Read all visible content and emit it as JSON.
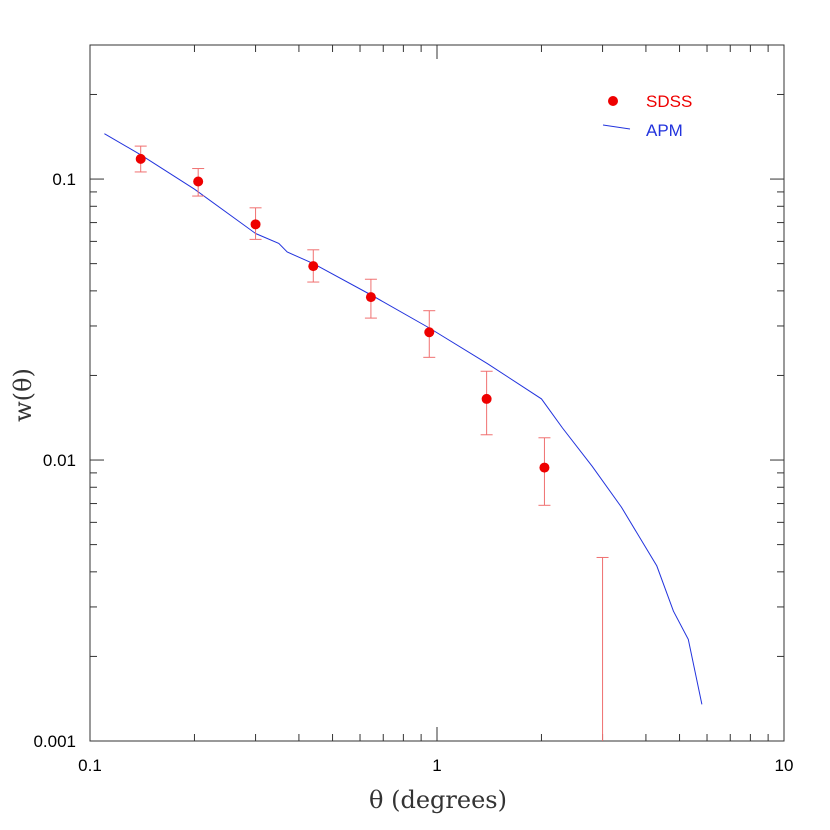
{
  "chart_data": {
    "type": "scatter",
    "xlabel": "θ (degrees)",
    "ylabel": "w(θ)",
    "x_scale": "log",
    "y_scale": "log",
    "xlim": [
      0.1,
      10
    ],
    "ylim": [
      0.001,
      0.3
    ],
    "grid": false,
    "legend_position": "top-right",
    "x_tick_labels": [
      "0.1",
      "1",
      "10"
    ],
    "y_tick_labels": [
      "0.001",
      "0.01",
      "0.1"
    ],
    "series": [
      {
        "name": "SDSS",
        "kind": "points-with-error-bars",
        "color": "#ee0000",
        "errorbar_color": "#f07070",
        "points": [
          {
            "x": 0.14,
            "y": 0.118,
            "ylo": 0.106,
            "yhi": 0.131
          },
          {
            "x": 0.205,
            "y": 0.098,
            "ylo": 0.087,
            "yhi": 0.109
          },
          {
            "x": 0.3,
            "y": 0.069,
            "ylo": 0.061,
            "yhi": 0.079
          },
          {
            "x": 0.44,
            "y": 0.049,
            "ylo": 0.043,
            "yhi": 0.056
          },
          {
            "x": 0.645,
            "y": 0.038,
            "ylo": 0.032,
            "yhi": 0.044
          },
          {
            "x": 0.95,
            "y": 0.0285,
            "ylo": 0.0232,
            "yhi": 0.034
          },
          {
            "x": 1.39,
            "y": 0.0165,
            "ylo": 0.0123,
            "yhi": 0.0207
          },
          {
            "x": 2.04,
            "y": 0.0094,
            "ylo": 0.0069,
            "yhi": 0.012
          },
          {
            "x": 3.0,
            "y": null,
            "ylo": 0.001,
            "yhi": 0.0045
          }
        ]
      },
      {
        "name": "APM",
        "kind": "line",
        "color": "#2233dd",
        "points": [
          {
            "x": 0.11,
            "y": 0.145
          },
          {
            "x": 0.14,
            "y": 0.122
          },
          {
            "x": 0.2,
            "y": 0.092
          },
          {
            "x": 0.3,
            "y": 0.064
          },
          {
            "x": 0.35,
            "y": 0.059
          },
          {
            "x": 0.37,
            "y": 0.055
          },
          {
            "x": 0.44,
            "y": 0.05
          },
          {
            "x": 0.65,
            "y": 0.0385
          },
          {
            "x": 0.95,
            "y": 0.0295
          },
          {
            "x": 1.4,
            "y": 0.022
          },
          {
            "x": 2.0,
            "y": 0.0165
          },
          {
            "x": 2.3,
            "y": 0.013
          },
          {
            "x": 2.8,
            "y": 0.0095
          },
          {
            "x": 3.4,
            "y": 0.0068
          },
          {
            "x": 4.3,
            "y": 0.0042
          },
          {
            "x": 4.8,
            "y": 0.0029
          },
          {
            "x": 5.3,
            "y": 0.0023
          },
          {
            "x": 5.8,
            "y": 0.00135
          }
        ]
      }
    ]
  }
}
